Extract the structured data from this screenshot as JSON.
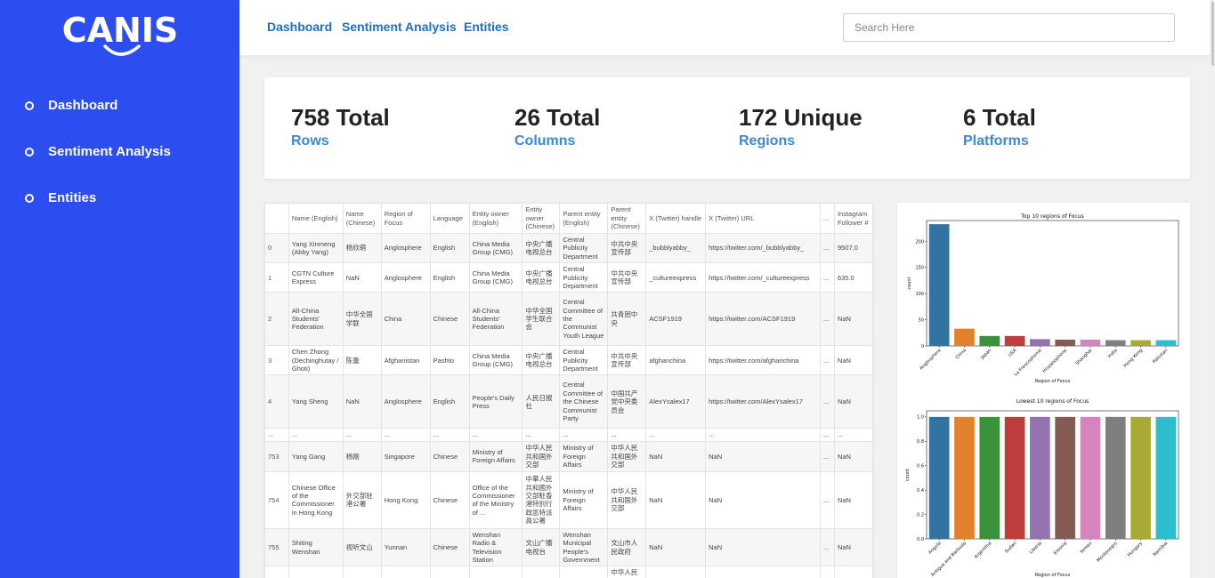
{
  "brand": {
    "logo_text": "CANIS"
  },
  "sidebar": {
    "items": [
      {
        "label": "Dashboard"
      },
      {
        "label": "Sentiment Analysis"
      },
      {
        "label": "Entities"
      }
    ]
  },
  "topnav": {
    "links": [
      "Dashboard",
      "Sentiment Analysis",
      "Entities"
    ],
    "search_placeholder": "Search Here"
  },
  "stats": [
    {
      "value": "758 Total",
      "label": "Rows"
    },
    {
      "value": "26 Total",
      "label": "Columns"
    },
    {
      "value": "172 Unique",
      "label": "Regions"
    },
    {
      "value": "6 Total",
      "label": "Platforms"
    }
  ],
  "table": {
    "headers": [
      "",
      "Name (English)",
      "Name (Chinese)",
      "Region of Focus",
      "Language",
      "Entity owner (English)",
      "Entity owner (Chinese)",
      "Parent entity (English)",
      "Parent entity (Chinese)",
      "X (Twitter) handle",
      "X (Twitter) URL",
      "...",
      "Instagram Follower #"
    ],
    "rows": [
      [
        "0",
        "Yang Xinmeng (Abby Yang)",
        "杨欣萌",
        "Anglosphere",
        "English",
        "China Media Group (CMG)",
        "中央广播电视总台",
        "Central Publicity Department",
        "中共中央宣传部",
        "_bubblyabby_",
        "https://twitter.com/_bubblyabby_",
        "...",
        "9507.0"
      ],
      [
        "1",
        "CGTN Culture Express",
        "NaN",
        "Anglosphere",
        "English",
        "China Media Group (CMG)",
        "中央广播电视总台",
        "Central Publicity Department",
        "中共中央宣传部",
        "_cultureexpress",
        "https://twitter.com/_cultureexpress",
        "...",
        "635.0"
      ],
      [
        "2",
        "All-China Students' Federation",
        "中华全国学联",
        "China",
        "Chinese",
        "All-China Students' Federation",
        "中华全国学生联合会",
        "Central Committee of the Communist Youth League",
        "共青团中央",
        "ACSF1919",
        "https://twitter.com/ACSF1919",
        "...",
        "NaN"
      ],
      [
        "3",
        "Chen Zhong (Dechinghutay / Ghoti)",
        "陈重",
        "Afghanistan",
        "Pashto",
        "China Media Group (CMG)",
        "中央广播电视总台",
        "Central Publicity Department",
        "中共中央宣传部",
        "afghanchina",
        "https://twitter.com/afghanchina",
        "...",
        "NaN"
      ],
      [
        "4",
        "Yang Sheng",
        "NaN",
        "Anglosphere",
        "English",
        "People's Daily Press",
        "人民日报社",
        "Central Committee of the Chinese Communist Party",
        "中国共产党中央委员会",
        "AlexYsalex17",
        "https://twitter.com/AlexYsalex17",
        "...",
        "NaN"
      ],
      [
        "...",
        "...",
        "...",
        "...",
        "...",
        "...",
        "...",
        "...",
        "...",
        "...",
        "...",
        "...",
        "..."
      ],
      [
        "753",
        "Yang Gang",
        "杨刚",
        "Singapore",
        "Chinese",
        "Ministry of Foreign Affairs",
        "中华人民共和国外交部",
        "Ministry of Foreign Affairs",
        "中华人民共和国外交部",
        "NaN",
        "NaN",
        "...",
        "NaN"
      ],
      [
        "754",
        "Chinese Office of the Commissioner in Hong Kong",
        "外交部驻港公署",
        "Hong Kong",
        "Chinese",
        "Office of the Commissioner of the Ministry of ...",
        "中華人民共和國外交部駐香港特別行政區特派員公署",
        "Ministry of Foreign Affairs",
        "中华人民共和国外交部",
        "NaN",
        "NaN",
        "...",
        "NaN"
      ],
      [
        "755",
        "Shiting Wenshan",
        "视听文山",
        "Yunnan",
        "Chinese",
        "Wenshan Radio & Television Station",
        "文山广播电视台",
        "Wenshan Municipal People's Government",
        "文山市人民政府",
        "NaN",
        "NaN",
        "...",
        "NaN"
      ],
      [
        "",
        "",
        "",
        "",
        "",
        "",
        "",
        "",
        "中华人民",
        "",
        "",
        "",
        ""
      ]
    ]
  },
  "chart_data": [
    {
      "type": "bar",
      "title": "Top 10 regions of Focus",
      "xlabel": "Region of Focus",
      "ylabel": "count",
      "categories": [
        "Anglosphere",
        "China",
        "Japan",
        "USA",
        "La Francophonie",
        "Hispanophone",
        "Shanghai",
        "India",
        "Hong Kong",
        "Pakistan"
      ],
      "values": [
        233,
        33,
        19,
        19,
        13,
        12,
        12,
        11,
        11,
        11
      ],
      "ylim": [
        0,
        240
      ],
      "yticks": [
        0,
        50,
        100,
        150,
        200
      ],
      "colors": [
        "#3274a1",
        "#e1812c",
        "#3a923a",
        "#c03d3e",
        "#9372b2",
        "#845b53",
        "#d684bd",
        "#7f7f7f",
        "#a9aa35",
        "#2ebdcc"
      ]
    },
    {
      "type": "bar",
      "title": "Lowest 10 regions of Focus",
      "xlabel": "Region of Focus",
      "ylabel": "count",
      "categories": [
        "Angola",
        "Antigua and Barbuda",
        "Argentina",
        "Sudan",
        "Liberia",
        "Estonia",
        "Yemen",
        "Montenegro",
        "Hungary",
        "Namibia"
      ],
      "values": [
        1.0,
        1.0,
        1.0,
        1.0,
        1.0,
        1.0,
        1.0,
        1.0,
        1.0,
        1.0
      ],
      "ylim": [
        0,
        1.05
      ],
      "yticks": [
        "0.0",
        "0.2",
        "0.4",
        "0.6",
        "0.8",
        "1.0"
      ],
      "colors": [
        "#3274a1",
        "#e1812c",
        "#3a923a",
        "#c03d3e",
        "#9372b2",
        "#845b53",
        "#d684bd",
        "#7f7f7f",
        "#a9aa35",
        "#2ebdcc"
      ]
    }
  ]
}
